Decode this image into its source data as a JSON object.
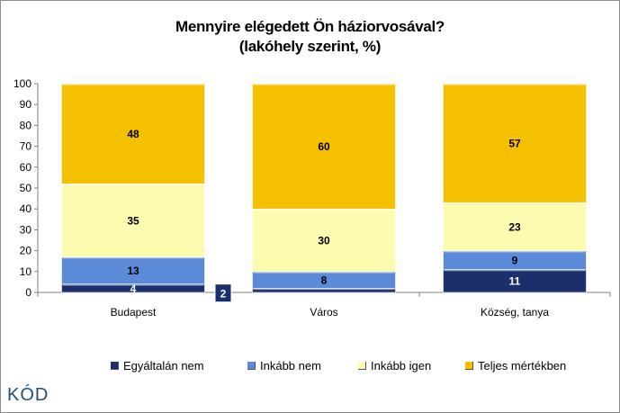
{
  "chart_data": {
    "type": "bar",
    "stacked": true,
    "title_line1": "Mennyire elégedett Ön háziorvosával?",
    "title_line2": "(lakóhely szerint, %)",
    "categories": [
      "Budapest",
      "Város",
      "Község, tanya"
    ],
    "series": [
      {
        "name": "Egyáltalán nem",
        "values": [
          4,
          2,
          11
        ],
        "color": "#1a2f6b"
      },
      {
        "name": "Inkább nem",
        "values": [
          13,
          8,
          9
        ],
        "color": "#5b8ad8"
      },
      {
        "name": "Inkább igen",
        "values": [
          35,
          30,
          23
        ],
        "color": "#fdfbb0"
      },
      {
        "name": "Teljes mértékben",
        "values": [
          48,
          60,
          57
        ],
        "color": "#f5c000"
      }
    ],
    "ylim": [
      0,
      100
    ],
    "yticks": [
      "0",
      "10",
      "20",
      "30",
      "40",
      "50",
      "60",
      "70",
      "80",
      "90",
      "100"
    ],
    "grid": false,
    "legend_position": "bottom"
  },
  "logo": {
    "text": "KÓD"
  }
}
